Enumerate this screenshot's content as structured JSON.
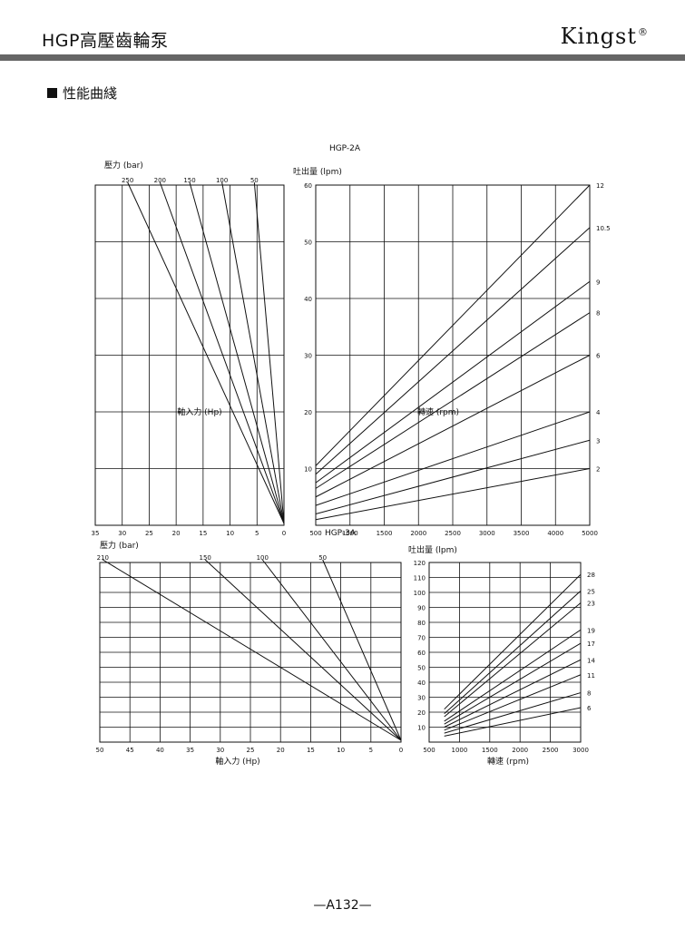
{
  "header": {
    "product_title": "HGP高壓齒輪泵",
    "brand": "Kingst",
    "brand_mark": "®"
  },
  "section": {
    "title": "性能曲綫"
  },
  "footer": {
    "page_number": "—A132—"
  },
  "chart_data": [
    {
      "type": "line",
      "title": "HGP-2A",
      "left_panel": {
        "top_label": "壓力 (bar)",
        "xlabel": "軸入力 (Hp)",
        "x_ticks": [
          "35",
          "30",
          "25",
          "20",
          "15",
          "10",
          "5",
          "0"
        ],
        "xlim": [
          35,
          0
        ],
        "pressure_ticks": [
          "250",
          "200",
          "150",
          "100",
          "50"
        ],
        "series": [
          {
            "name": "250",
            "from_hp": 29,
            "to_hp": 0
          },
          {
            "name": "200",
            "from_hp": 23,
            "to_hp": 0
          },
          {
            "name": "150",
            "from_hp": 17.5,
            "to_hp": 0
          },
          {
            "name": "100",
            "from_hp": 11.5,
            "to_hp": 0
          },
          {
            "name": "50",
            "from_hp": 5.5,
            "to_hp": 0
          }
        ]
      },
      "right_panel": {
        "ylabel": "吐出量 (lpm)",
        "xlabel": "轉速 (rpm)",
        "x_ticks": [
          "500",
          "1000",
          "1500",
          "2000",
          "2500",
          "3000",
          "3500",
          "4000",
          "5000"
        ],
        "y_ticks": [
          "60",
          "50",
          "40",
          "30",
          "20",
          "10"
        ],
        "ylim": [
          0,
          60
        ],
        "series": [
          {
            "name": "12",
            "x": [
              500,
              5000
            ],
            "y": [
              10.5,
              60
            ]
          },
          {
            "name": "10.5",
            "x": [
              500,
              5000
            ],
            "y": [
              9,
              52.5
            ]
          },
          {
            "name": "9",
            "x": [
              500,
              5000
            ],
            "y": [
              7.5,
              43
            ]
          },
          {
            "name": "8",
            "x": [
              500,
              5000
            ],
            "y": [
              6.5,
              37.5
            ]
          },
          {
            "name": "6",
            "x": [
              500,
              5000
            ],
            "y": [
              5,
              30
            ]
          },
          {
            "name": "4",
            "x": [
              500,
              5000
            ],
            "y": [
              3.5,
              20
            ]
          },
          {
            "name": "3",
            "x": [
              500,
              5000
            ],
            "y": [
              2,
              15
            ]
          },
          {
            "name": "2",
            "x": [
              500,
              5000
            ],
            "y": [
              1,
              10
            ]
          }
        ]
      }
    },
    {
      "type": "line",
      "title": "HGP-3A",
      "left_panel": {
        "top_label": "壓力 (bar)",
        "xlabel": "軸入力 (Hp)",
        "x_ticks": [
          "50",
          "45",
          "40",
          "35",
          "30",
          "25",
          "20",
          "15",
          "10",
          "5",
          "0"
        ],
        "xlim": [
          50,
          0
        ],
        "pressure_ticks": [
          "210",
          "150",
          "100",
          "50"
        ],
        "series": [
          {
            "name": "210",
            "from_hp": 49.5,
            "to_hp": 0
          },
          {
            "name": "150",
            "from_hp": 32.5,
            "to_hp": 0
          },
          {
            "name": "100",
            "from_hp": 23,
            "to_hp": 0
          },
          {
            "name": "50",
            "from_hp": 13,
            "to_hp": 0
          }
        ]
      },
      "right_panel": {
        "ylabel": "吐出量 (lpm)",
        "xlabel": "轉速 (rpm)",
        "x_ticks": [
          "500",
          "1000",
          "1500",
          "2000",
          "2500",
          "3000"
        ],
        "y_ticks": [
          "120",
          "110",
          "100",
          "90",
          "80",
          "70",
          "60",
          "50",
          "40",
          "30",
          "20",
          "10"
        ],
        "ylim": [
          0,
          120
        ],
        "series": [
          {
            "name": "28",
            "x": [
              750,
              3000
            ],
            "y": [
              22,
              112
            ]
          },
          {
            "name": "25",
            "x": [
              750,
              3000
            ],
            "y": [
              19,
              101
            ]
          },
          {
            "name": "23",
            "x": [
              750,
              3000
            ],
            "y": [
              17,
              93
            ]
          },
          {
            "name": "19",
            "x": [
              750,
              3000
            ],
            "y": [
              14,
              75
            ]
          },
          {
            "name": "17",
            "x": [
              750,
              3000
            ],
            "y": [
              12,
              66
            ]
          },
          {
            "name": "14",
            "x": [
              750,
              3000
            ],
            "y": [
              10,
              55
            ]
          },
          {
            "name": "11",
            "x": [
              750,
              3000
            ],
            "y": [
              8,
              45
            ]
          },
          {
            "name": "8",
            "x": [
              750,
              3000
            ],
            "y": [
              6,
              33
            ]
          },
          {
            "name": "6",
            "x": [
              750,
              3000
            ],
            "y": [
              4,
              23
            ]
          }
        ]
      }
    }
  ]
}
